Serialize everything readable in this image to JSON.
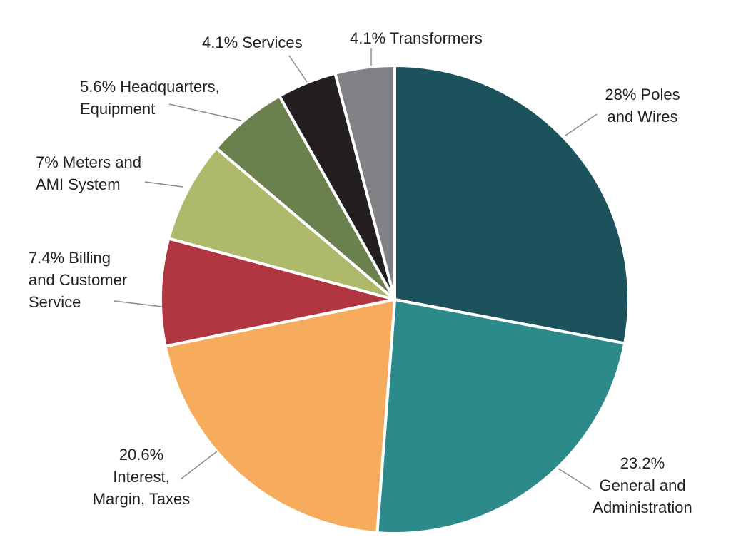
{
  "chart_data": {
    "type": "pie",
    "title": "",
    "start": "top",
    "direction": "clockwise",
    "slices": [
      {
        "value": 28.0,
        "label": [
          "28% Poles",
          "and Wires"
        ],
        "color": "#1c525c"
      },
      {
        "value": 23.2,
        "label": [
          "23.2%",
          "General and",
          "Administration"
        ],
        "color": "#2d8a8a"
      },
      {
        "value": 20.6,
        "label": [
          "20.6%",
          "Interest,",
          "Margin, Taxes"
        ],
        "color": "#f7ab5d"
      },
      {
        "value": 7.4,
        "label": [
          "7.4% Billing",
          "and Customer",
          "Service"
        ],
        "color": "#b23642"
      },
      {
        "value": 7.0,
        "label": [
          "7% Meters and",
          "AMI System"
        ],
        "color": "#aeb96b"
      },
      {
        "value": 5.6,
        "label": [
          "5.6% Headquarters,",
          "Equipment"
        ],
        "color": "#6b814d"
      },
      {
        "value": 4.1,
        "label": [
          "4.1% Services"
        ],
        "color": "#231f20"
      },
      {
        "value": 4.1,
        "label": [
          "4.1% Transformers"
        ],
        "color": "#818285"
      }
    ]
  }
}
